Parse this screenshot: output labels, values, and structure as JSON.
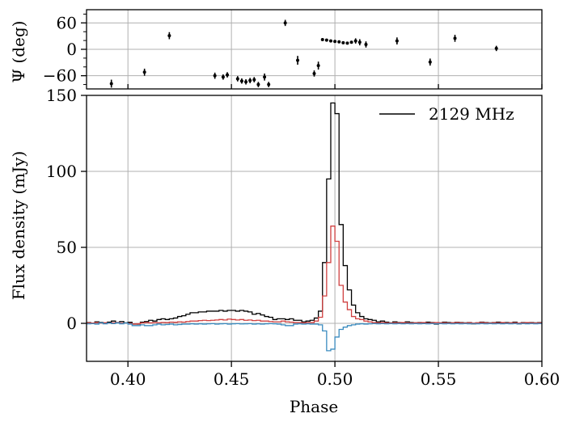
{
  "chart_data": [
    {
      "type": "scatter",
      "panel": "top",
      "ylabel": "Ψ (deg)",
      "xlim": [
        0.38,
        0.6
      ],
      "ylim": [
        -90,
        90
      ],
      "yticks": [
        60,
        0,
        -60
      ],
      "ytick_labels": [
        "60",
        "0",
        "−60"
      ],
      "grid": true,
      "points": [
        {
          "x": 0.392,
          "y": -78,
          "err": 9
        },
        {
          "x": 0.408,
          "y": -52,
          "err": 8
        },
        {
          "x": 0.42,
          "y": 31,
          "err": 8
        },
        {
          "x": 0.442,
          "y": -60,
          "err": 7
        },
        {
          "x": 0.446,
          "y": -63,
          "err": 6
        },
        {
          "x": 0.448,
          "y": -58,
          "err": 6
        },
        {
          "x": 0.453,
          "y": -67,
          "err": 6
        },
        {
          "x": 0.455,
          "y": -72,
          "err": 6
        },
        {
          "x": 0.457,
          "y": -74,
          "err": 6
        },
        {
          "x": 0.459,
          "y": -71,
          "err": 6
        },
        {
          "x": 0.461,
          "y": -69,
          "err": 6
        },
        {
          "x": 0.463,
          "y": -80,
          "err": 6
        },
        {
          "x": 0.466,
          "y": -63,
          "err": 8
        },
        {
          "x": 0.468,
          "y": -80,
          "err": 6
        },
        {
          "x": 0.476,
          "y": 60,
          "err": 7
        },
        {
          "x": 0.482,
          "y": -25,
          "err": 10
        },
        {
          "x": 0.49,
          "y": -55,
          "err": 7
        },
        {
          "x": 0.492,
          "y": -37,
          "err": 9
        },
        {
          "x": 0.494,
          "y": 22,
          "err": 2
        },
        {
          "x": 0.496,
          "y": 21,
          "err": 2
        },
        {
          "x": 0.498,
          "y": 19,
          "err": 2
        },
        {
          "x": 0.5,
          "y": 18,
          "err": 2
        },
        {
          "x": 0.502,
          "y": 17,
          "err": 2
        },
        {
          "x": 0.504,
          "y": 15,
          "err": 2
        },
        {
          "x": 0.506,
          "y": 14,
          "err": 3
        },
        {
          "x": 0.508,
          "y": 16,
          "err": 3
        },
        {
          "x": 0.51,
          "y": 19,
          "err": 6
        },
        {
          "x": 0.512,
          "y": 16,
          "err": 7
        },
        {
          "x": 0.515,
          "y": 11,
          "err": 7
        },
        {
          "x": 0.53,
          "y": 19,
          "err": 8
        },
        {
          "x": 0.546,
          "y": -29,
          "err": 8
        },
        {
          "x": 0.558,
          "y": 25,
          "err": 8
        },
        {
          "x": 0.578,
          "y": 2,
          "err": 6
        }
      ]
    },
    {
      "type": "line",
      "panel": "bottom",
      "xlabel": "Phase",
      "ylabel": "Flux density (mJy)",
      "xlim": [
        0.38,
        0.6
      ],
      "ylim": [
        -25,
        150
      ],
      "xticks": [
        0.4,
        0.45,
        0.5,
        0.55,
        0.6
      ],
      "xtick_labels": [
        "0.40",
        "0.45",
        "0.50",
        "0.55",
        "0.60"
      ],
      "yticks": [
        0,
        50,
        100,
        150
      ],
      "ytick_labels": [
        "0",
        "50",
        "100",
        "150"
      ],
      "grid": true,
      "legend": {
        "position": "top-right",
        "entries": [
          "2129 MHz"
        ]
      },
      "step_width": 0.002,
      "x": [
        0.38,
        0.382,
        0.384,
        0.386,
        0.388,
        0.39,
        0.392,
        0.394,
        0.396,
        0.398,
        0.4,
        0.402,
        0.404,
        0.406,
        0.408,
        0.41,
        0.412,
        0.414,
        0.416,
        0.418,
        0.42,
        0.422,
        0.424,
        0.426,
        0.428,
        0.43,
        0.432,
        0.434,
        0.436,
        0.438,
        0.44,
        0.442,
        0.444,
        0.446,
        0.448,
        0.45,
        0.452,
        0.454,
        0.456,
        0.458,
        0.46,
        0.462,
        0.464,
        0.466,
        0.468,
        0.47,
        0.472,
        0.474,
        0.476,
        0.478,
        0.48,
        0.482,
        0.484,
        0.486,
        0.488,
        0.49,
        0.492,
        0.494,
        0.496,
        0.498,
        0.5,
        0.502,
        0.504,
        0.506,
        0.508,
        0.51,
        0.512,
        0.514,
        0.516,
        0.518,
        0.52,
        0.522,
        0.524,
        0.526,
        0.528,
        0.53,
        0.532,
        0.534,
        0.536,
        0.538,
        0.54,
        0.542,
        0.544,
        0.546,
        0.548,
        0.55,
        0.552,
        0.554,
        0.556,
        0.558,
        0.56,
        0.562,
        0.564,
        0.566,
        0.568,
        0.57,
        0.572,
        0.574,
        0.576,
        0.578,
        0.58,
        0.582,
        0.584,
        0.586,
        0.588,
        0.59,
        0.592,
        0.594,
        0.596,
        0.598
      ],
      "series": [
        {
          "name": "2129 MHz",
          "color": "#000000",
          "values": [
            0.5,
            0.2,
            1.0,
            0.6,
            0.1,
            0.8,
            1.5,
            0.5,
            1.2,
            0.3,
            0.7,
            -0.5,
            -0.5,
            0.8,
            1.2,
            2.0,
            1.5,
            2.5,
            3.0,
            2.5,
            3.0,
            3.5,
            4.5,
            5.0,
            6.0,
            7.0,
            7.0,
            7.5,
            7.5,
            8.0,
            8.0,
            8.0,
            8.5,
            8.0,
            8.5,
            8.5,
            8.0,
            8.5,
            8.0,
            7.5,
            6.0,
            6.5,
            5.5,
            4.5,
            4.0,
            2.5,
            3.0,
            3.0,
            2.5,
            3.0,
            2.0,
            2.0,
            1.0,
            1.5,
            2.0,
            3.5,
            8.0,
            40.0,
            95.0,
            145.0,
            138.0,
            65.0,
            38.0,
            22.0,
            12.0,
            7.0,
            4.5,
            3.0,
            2.5,
            2.0,
            1.0,
            1.5,
            0.8,
            0.3,
            1.0,
            0.5,
            0.3,
            1.0,
            0.5,
            0.3,
            0.5,
            0.3,
            0.8,
            0.5,
            -0.5,
            0.3,
            0.8,
            0.5,
            0.3,
            0.7,
            0.5,
            0.3,
            0.5,
            -0.3,
            0.3,
            0.8,
            0.5,
            0.3,
            0.5,
            0.8,
            0.3,
            0.5,
            0.3,
            0.8,
            -0.3,
            0.5,
            0.3,
            0.5,
            0.3,
            0.5
          ]
        },
        {
          "name": "",
          "color": "#d04040",
          "values": [
            0.3,
            0.2,
            0.5,
            0.1,
            0.4,
            0.2,
            0.3,
            0.5,
            0.1,
            0.2,
            0.0,
            -0.5,
            -0.3,
            0.3,
            0.5,
            0.3,
            0.5,
            0.4,
            0.6,
            0.5,
            0.8,
            0.7,
            1.0,
            0.8,
            1.2,
            1.5,
            1.5,
            1.8,
            2.0,
            1.8,
            2.0,
            2.2,
            2.5,
            2.2,
            2.8,
            2.5,
            2.2,
            2.5,
            2.0,
            2.2,
            1.8,
            2.0,
            1.5,
            1.5,
            1.2,
            1.0,
            1.0,
            1.5,
            1.0,
            0.8,
            0.5,
            0.5,
            0.3,
            0.5,
            0.5,
            1.5,
            4.0,
            18.0,
            40.0,
            64.0,
            54.0,
            25.0,
            14.0,
            9.0,
            4.5,
            3.0,
            2.5,
            1.5,
            1.0,
            0.5,
            0.3,
            0.5,
            0.3,
            0.2,
            0.4,
            0.3,
            0.5,
            0.3,
            0.2,
            0.4,
            0.3,
            0.5,
            0.2,
            0.3,
            0.5,
            0.3,
            0.4,
            0.2,
            0.3,
            0.5,
            0.3,
            0.2,
            0.4,
            0.2,
            0.3,
            0.5,
            0.3,
            0.2,
            0.4,
            0.3,
            0.5,
            0.2,
            0.3,
            0.4,
            0.2,
            0.3,
            0.5,
            0.3,
            0.2,
            0.3
          ]
        },
        {
          "name": "",
          "color": "#3a8bbf",
          "values": [
            -0.3,
            -0.2,
            -0.5,
            0.3,
            -0.3,
            0.2,
            -0.2,
            0.3,
            -0.3,
            0.2,
            -0.5,
            -1.5,
            -1.5,
            -1.0,
            -1.5,
            -1.5,
            -1.0,
            -0.5,
            -1.0,
            -0.8,
            -0.5,
            -1.0,
            -0.8,
            -0.5,
            -0.5,
            -0.3,
            -0.5,
            -0.3,
            -0.5,
            -0.3,
            -0.2,
            -0.5,
            -0.3,
            -0.2,
            -0.5,
            -0.3,
            -0.2,
            -0.4,
            -0.3,
            -0.2,
            -0.5,
            -0.3,
            -0.5,
            -0.3,
            -0.2,
            -0.3,
            -0.5,
            -1.0,
            -1.5,
            -1.5,
            -0.5,
            -0.3,
            -0.5,
            -0.3,
            -0.5,
            -0.5,
            -1.0,
            -5.0,
            -18.0,
            -17.0,
            -9.0,
            -4.0,
            -2.5,
            -1.5,
            -1.0,
            -0.5,
            -0.3,
            -0.5,
            -0.3,
            -0.2,
            -0.3,
            -0.2,
            -0.3,
            -0.2,
            -0.3,
            -0.2,
            -0.3,
            -0.2,
            -0.3,
            -0.2,
            -0.3,
            -0.2,
            -0.3,
            -0.2,
            -0.3,
            -0.2,
            -0.3,
            -0.2,
            -0.3,
            -0.2,
            -0.3,
            -0.2,
            -0.3,
            -0.2,
            -0.3,
            -0.2,
            -0.3,
            -0.2,
            -0.3,
            -0.2,
            -0.3,
            -0.2,
            -0.3,
            -0.2,
            -0.3,
            -0.2,
            -0.3,
            -0.2,
            -0.3,
            -0.2
          ]
        }
      ]
    }
  ]
}
